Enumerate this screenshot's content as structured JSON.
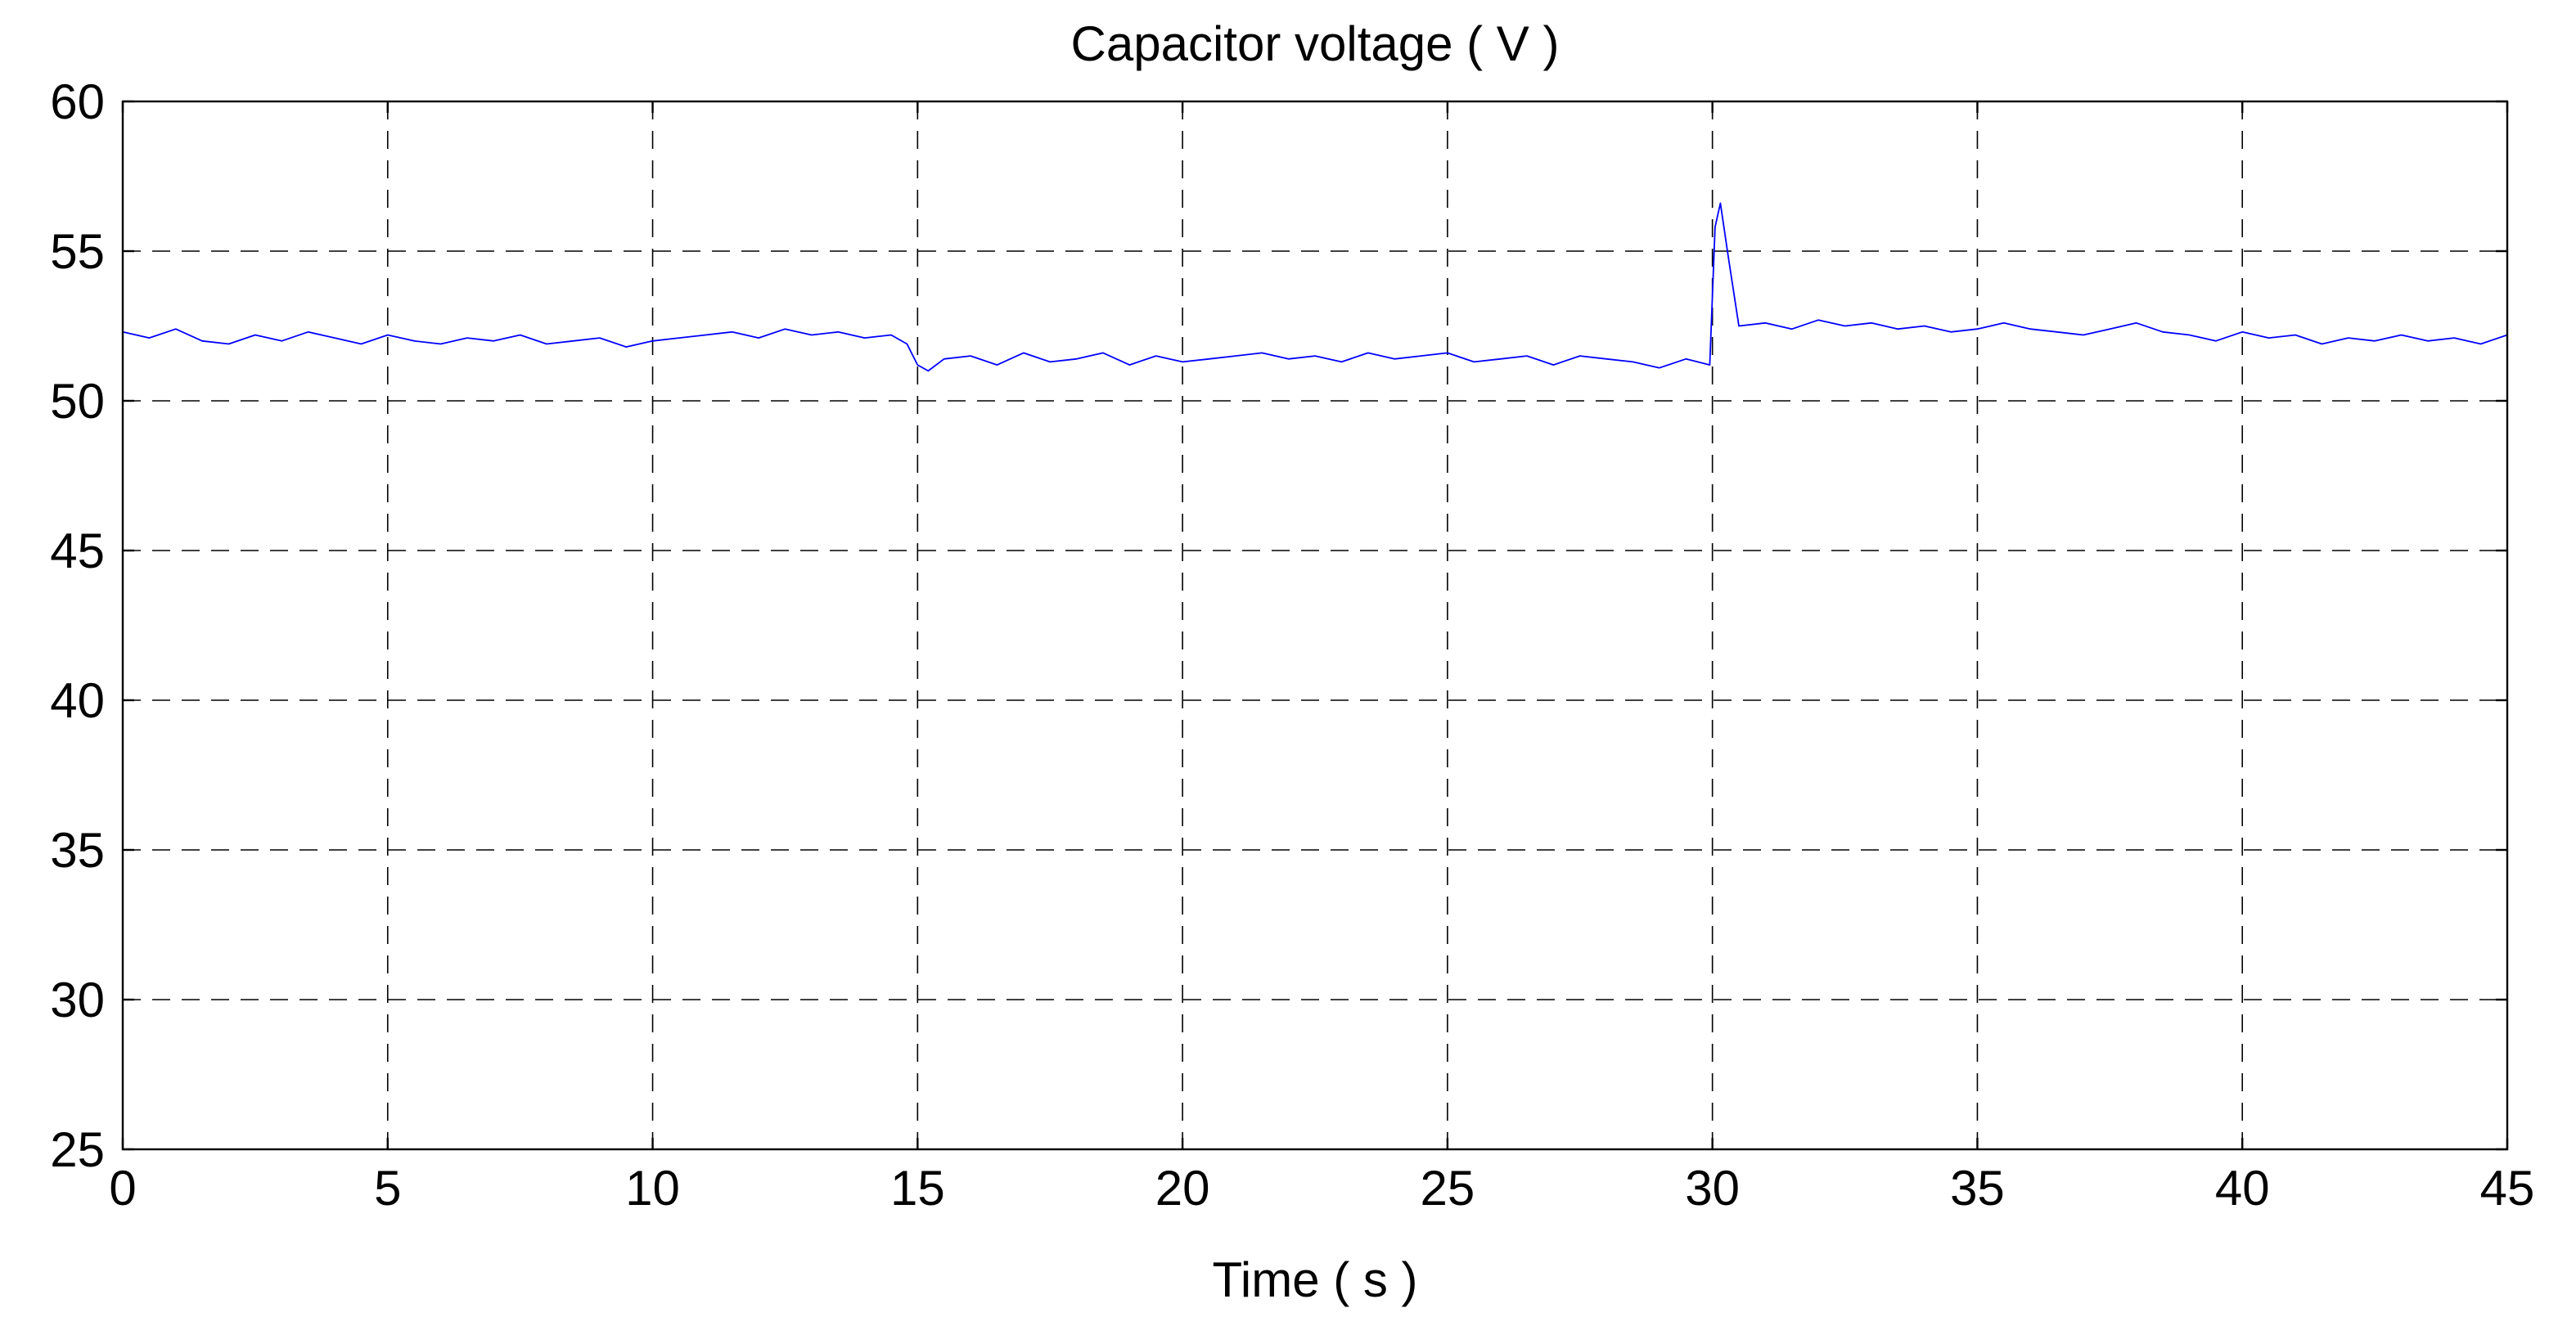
{
  "chart_data": {
    "type": "line",
    "title": "Capacitor voltage ( V )",
    "xlabel": "Time ( s )",
    "ylabel": "",
    "xlim": [
      0,
      45
    ],
    "ylim": [
      25,
      60
    ],
    "xticks": [
      0,
      5,
      10,
      15,
      20,
      25,
      30,
      35,
      40,
      45
    ],
    "yticks": [
      25,
      30,
      35,
      40,
      45,
      50,
      55,
      60
    ],
    "xtick_labels": [
      "0",
      "5",
      "10",
      "15",
      "20",
      "25",
      "30",
      "35",
      "40",
      "45"
    ],
    "ytick_labels": [
      "25",
      "30",
      "35",
      "40",
      "45",
      "50",
      "55",
      "60"
    ],
    "grid": true,
    "series": [
      {
        "color": "#0000ff",
        "x": [
          0,
          0.5,
          1,
          1.5,
          2,
          2.5,
          3,
          3.5,
          4,
          4.5,
          5,
          5.5,
          6,
          6.5,
          7,
          7.5,
          8,
          8.5,
          9,
          9.5,
          10,
          10.5,
          11,
          11.5,
          12,
          12.5,
          13,
          13.5,
          14,
          14.5,
          14.8,
          15,
          15.2,
          15.5,
          16,
          16.5,
          17,
          17.5,
          18,
          18.5,
          19,
          19.5,
          20,
          20.5,
          21,
          21.5,
          22,
          22.5,
          23,
          23.5,
          24,
          24.5,
          25,
          25.5,
          26,
          26.5,
          27,
          27.5,
          28,
          28.5,
          29,
          29.5,
          29.95,
          30.05,
          30.15,
          30.3,
          30.5,
          31,
          31.5,
          32,
          32.5,
          33,
          33.5,
          34,
          34.5,
          35,
          35.5,
          36,
          36.5,
          37,
          37.5,
          38,
          38.5,
          39,
          39.5,
          40,
          40.5,
          41,
          41.5,
          42,
          42.5,
          43,
          43.5,
          44,
          44.5,
          45
        ],
        "y": [
          52.3,
          52.1,
          52.4,
          52.0,
          51.9,
          52.2,
          52.0,
          52.3,
          52.1,
          51.9,
          52.2,
          52.0,
          51.9,
          52.1,
          52.0,
          52.2,
          51.9,
          52.0,
          52.1,
          51.8,
          52.0,
          52.1,
          52.2,
          52.3,
          52.1,
          52.4,
          52.2,
          52.3,
          52.1,
          52.2,
          51.9,
          51.2,
          51.0,
          51.4,
          51.5,
          51.2,
          51.6,
          51.3,
          51.4,
          51.6,
          51.2,
          51.5,
          51.3,
          51.4,
          51.5,
          51.6,
          51.4,
          51.5,
          51.3,
          51.6,
          51.4,
          51.5,
          51.6,
          51.3,
          51.4,
          51.5,
          51.2,
          51.5,
          51.4,
          51.3,
          51.1,
          51.4,
          51.2,
          55.8,
          56.6,
          54.8,
          52.5,
          52.6,
          52.4,
          52.7,
          52.5,
          52.6,
          52.4,
          52.5,
          52.3,
          52.4,
          52.6,
          52.4,
          52.3,
          52.2,
          52.4,
          52.6,
          52.3,
          52.2,
          52.0,
          52.3,
          52.1,
          52.2,
          51.9,
          52.1,
          52.0,
          52.2,
          52.0,
          52.1,
          51.9,
          52.2
        ]
      }
    ]
  }
}
